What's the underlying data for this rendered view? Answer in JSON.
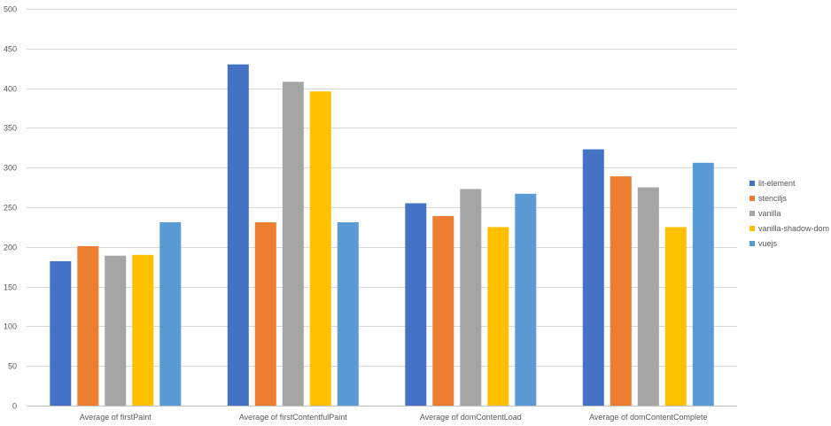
{
  "chart_data": {
    "type": "bar",
    "categories": [
      "Average of firstPaint",
      "Average of firstContentfulPaint",
      "Average of domContentLoad",
      "Average of domContentComplete"
    ],
    "series": [
      {
        "name": "lit-element",
        "color": "#4472c4",
        "values": [
          182,
          430,
          255,
          323
        ]
      },
      {
        "name": "stenciljs",
        "color": "#ed7d31",
        "values": [
          201,
          231,
          239,
          289
        ]
      },
      {
        "name": "vanilla",
        "color": "#a5a5a5",
        "values": [
          189,
          408,
          273,
          275
        ]
      },
      {
        "name": "vanilla-shadow-dom",
        "color": "#ffc000",
        "values": [
          190,
          396,
          225,
          225
        ]
      },
      {
        "name": "vuejs",
        "color": "#5b9bd5",
        "values": [
          231,
          231,
          267,
          306
        ]
      }
    ],
    "ylim": [
      0,
      500
    ],
    "yticks": [
      0,
      50,
      100,
      150,
      200,
      250,
      300,
      350,
      400,
      450,
      500
    ],
    "grid": true,
    "legend_position": "right",
    "title": "",
    "xlabel": "",
    "ylabel": ""
  }
}
